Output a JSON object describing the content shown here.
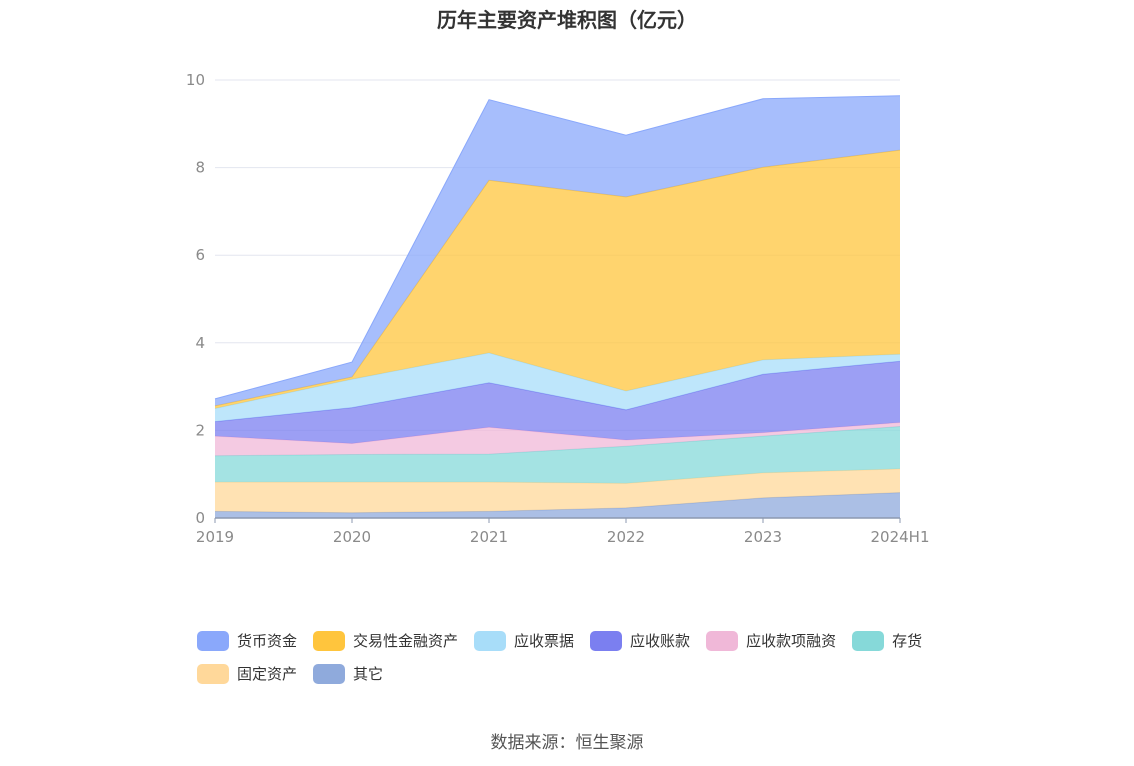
{
  "chart_data": {
    "type": "area",
    "stacked": true,
    "title": "历年主要资产堆积图（亿元）",
    "categories": [
      "2019",
      "2020",
      "2021",
      "2022",
      "2023",
      "2024H1"
    ],
    "ylim": [
      0,
      10
    ],
    "yticks": [
      "0",
      "2",
      "4",
      "6",
      "8",
      "10"
    ],
    "grid": true,
    "legend_position": "bottom",
    "series": [
      {
        "name": "其它",
        "color": "#8faadc",
        "values": [
          0.15,
          0.12,
          0.15,
          0.23,
          0.46,
          0.58
        ]
      },
      {
        "name": "固定资产",
        "color": "#ffd89a",
        "values": [
          0.67,
          0.7,
          0.67,
          0.56,
          0.57,
          0.54
        ]
      },
      {
        "name": "存货",
        "color": "#86d9d9",
        "values": [
          0.6,
          0.63,
          0.64,
          0.85,
          0.84,
          0.97
        ]
      },
      {
        "name": "应收款项融资",
        "color": "#f0b8d8",
        "values": [
          0.45,
          0.25,
          0.61,
          0.14,
          0.08,
          0.09
        ]
      },
      {
        "name": "应收账款",
        "color": "#7b7ff0",
        "values": [
          0.33,
          0.82,
          1.02,
          0.69,
          1.33,
          1.4
        ]
      },
      {
        "name": "应收票据",
        "color": "#a8ddf9",
        "values": [
          0.3,
          0.65,
          0.68,
          0.43,
          0.33,
          0.16
        ]
      },
      {
        "name": "交易性金融资产",
        "color": "#ffc53d",
        "values": [
          0.06,
          0.05,
          3.94,
          4.43,
          4.4,
          4.66
        ]
      },
      {
        "name": "货币资金",
        "color": "#8aa8fb",
        "values": [
          0.16,
          0.34,
          1.84,
          1.41,
          1.56,
          1.24
        ]
      }
    ]
  },
  "legend_order": [
    "货币资金",
    "交易性金融资产",
    "应收票据",
    "应收账款",
    "应收款项融资",
    "存货",
    "固定资产",
    "其它"
  ],
  "source": "数据来源：恒生聚源"
}
